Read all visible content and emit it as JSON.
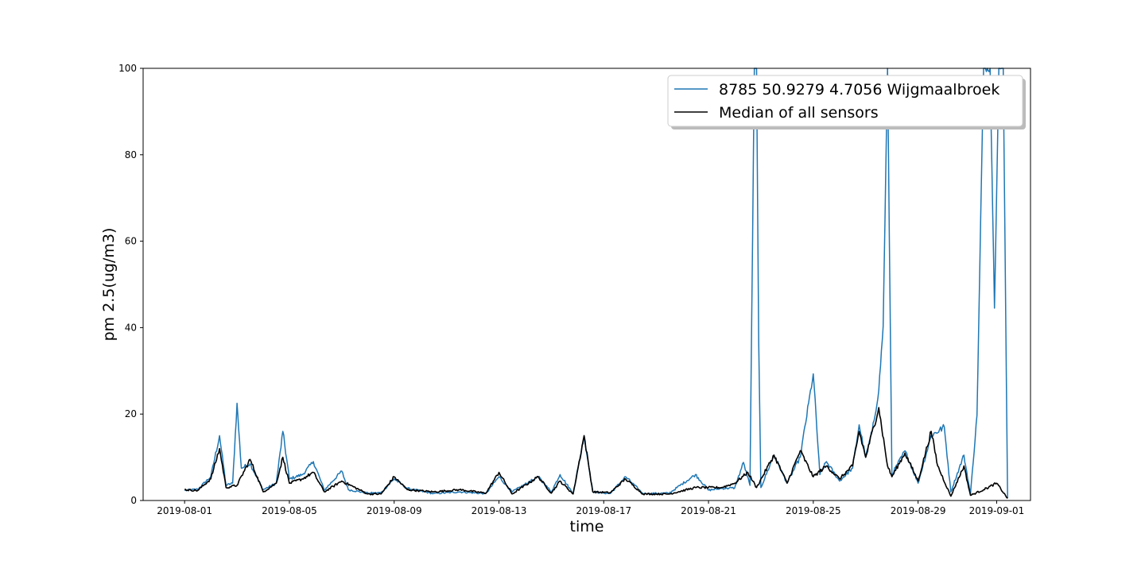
{
  "chart_data": {
    "type": "line",
    "xlabel": "time",
    "ylabel": "pm 2.5(ug/m3)",
    "ylim": [
      0,
      100
    ],
    "xlim": [
      "2019-07-30T10:00",
      "2019-09-02T07:00"
    ],
    "yticks": [
      "0",
      "20",
      "40",
      "60",
      "80",
      "100"
    ],
    "xticks": [
      "2019-08-01",
      "2019-08-05",
      "2019-08-09",
      "2019-08-13",
      "2019-08-17",
      "2019-08-21",
      "2019-08-25",
      "2019-08-29",
      "2019-09-01"
    ],
    "legend_position": "top-right",
    "grid": false,
    "series": [
      {
        "name": "8785 50.9279 4.7056 Wijgmaalbroek",
        "color": "#1f77b4",
        "points": [
          [
            "2019-08-01T00:00",
            2.3
          ],
          [
            "2019-08-01T12:00",
            2.6
          ],
          [
            "2019-08-02T00:00",
            5.5
          ],
          [
            "2019-08-02T08:00",
            15.0
          ],
          [
            "2019-08-02T14:00",
            3.5
          ],
          [
            "2019-08-02T20:00",
            4.0
          ],
          [
            "2019-08-03T00:00",
            22.5
          ],
          [
            "2019-08-03T04:00",
            7.5
          ],
          [
            "2019-08-03T12:00",
            8.5
          ],
          [
            "2019-08-04T00:00",
            2.5
          ],
          [
            "2019-08-04T12:00",
            4.0
          ],
          [
            "2019-08-04T18:00",
            16.0
          ],
          [
            "2019-08-05T00:00",
            5.0
          ],
          [
            "2019-08-05T12:00",
            6.0
          ],
          [
            "2019-08-05T22:00",
            9.0
          ],
          [
            "2019-08-06T08:00",
            2.4
          ],
          [
            "2019-08-07T00:00",
            6.8
          ],
          [
            "2019-08-07T06:00",
            2.5
          ],
          [
            "2019-08-08T00:00",
            1.7
          ],
          [
            "2019-08-08T12:00",
            1.8
          ],
          [
            "2019-08-09T00:00",
            5.0
          ],
          [
            "2019-08-09T12:00",
            2.8
          ],
          [
            "2019-08-10T12:00",
            1.6
          ],
          [
            "2019-08-11T12:00",
            2.0
          ],
          [
            "2019-08-12T12:00",
            1.6
          ],
          [
            "2019-08-13T00:00",
            5.5
          ],
          [
            "2019-08-13T12:00",
            2.0
          ],
          [
            "2019-08-14T12:00",
            5.5
          ],
          [
            "2019-08-15T00:00",
            2.0
          ],
          [
            "2019-08-15T08:00",
            6.0
          ],
          [
            "2019-08-15T20:00",
            1.6
          ],
          [
            "2019-08-16T06:00",
            15.0
          ],
          [
            "2019-08-16T14:00",
            2.0
          ],
          [
            "2019-08-17T06:00",
            1.6
          ],
          [
            "2019-08-17T20:00",
            5.5
          ],
          [
            "2019-08-18T12:00",
            1.6
          ],
          [
            "2019-08-19T12:00",
            1.7
          ],
          [
            "2019-08-20T12:00",
            6.0
          ],
          [
            "2019-08-21T00:00",
            2.4
          ],
          [
            "2019-08-21T12:00",
            2.8
          ],
          [
            "2019-08-22T00:00",
            2.9
          ],
          [
            "2019-08-22T08:00",
            8.8
          ],
          [
            "2019-08-22T14:00",
            3.5
          ],
          [
            "2019-08-22T18:00",
            100
          ],
          [
            "2019-08-22T20:00",
            100
          ],
          [
            "2019-08-22T22:00",
            36.5
          ],
          [
            "2019-08-23T00:00",
            3.0
          ],
          [
            "2019-08-23T12:00",
            10.5
          ],
          [
            "2019-08-24T00:00",
            4.0
          ],
          [
            "2019-08-24T12:00",
            10.0
          ],
          [
            "2019-08-25T00:00",
            29.3
          ],
          [
            "2019-08-25T06:00",
            6.0
          ],
          [
            "2019-08-25T12:00",
            9.0
          ],
          [
            "2019-08-26T00:00",
            4.5
          ],
          [
            "2019-08-26T12:00",
            7.5
          ],
          [
            "2019-08-26T18:00",
            17.5
          ],
          [
            "2019-08-27T00:00",
            10.0
          ],
          [
            "2019-08-27T06:00",
            16.0
          ],
          [
            "2019-08-27T12:00",
            25.5
          ],
          [
            "2019-08-27T16:00",
            40.3
          ],
          [
            "2019-08-27T20:00",
            100
          ],
          [
            "2019-08-28T00:00",
            6.0
          ],
          [
            "2019-08-28T12:00",
            11.5
          ],
          [
            "2019-08-29T00:00",
            4.0
          ],
          [
            "2019-08-29T12:00",
            15.0
          ],
          [
            "2019-08-30T00:00",
            17.0
          ],
          [
            "2019-08-30T06:00",
            2.0
          ],
          [
            "2019-08-30T18:00",
            10.5
          ],
          [
            "2019-08-31T00:00",
            1.5
          ],
          [
            "2019-08-31T06:00",
            19.7
          ],
          [
            "2019-08-31T12:00",
            100
          ],
          [
            "2019-08-31T18:00",
            100
          ],
          [
            "2019-08-31T22:00",
            44.5
          ],
          [
            "2019-09-01T02:00",
            100
          ],
          [
            "2019-09-01T06:00",
            100
          ],
          [
            "2019-09-01T10:00",
            0.5
          ]
        ]
      },
      {
        "name": "Median of all sensors",
        "color": "#000000",
        "points": [
          [
            "2019-08-01T00:00",
            2.5
          ],
          [
            "2019-08-01T12:00",
            2.3
          ],
          [
            "2019-08-02T00:00",
            5.0
          ],
          [
            "2019-08-02T08:00",
            12.0
          ],
          [
            "2019-08-02T14:00",
            3.0
          ],
          [
            "2019-08-03T00:00",
            3.5
          ],
          [
            "2019-08-03T12:00",
            9.5
          ],
          [
            "2019-08-04T00:00",
            2.0
          ],
          [
            "2019-08-04T12:00",
            4.0
          ],
          [
            "2019-08-04T18:00",
            10.0
          ],
          [
            "2019-08-05T00:00",
            4.0
          ],
          [
            "2019-08-05T12:00",
            5.0
          ],
          [
            "2019-08-05T22:00",
            6.5
          ],
          [
            "2019-08-06T08:00",
            2.0
          ],
          [
            "2019-08-07T00:00",
            4.5
          ],
          [
            "2019-08-08T00:00",
            1.5
          ],
          [
            "2019-08-08T12:00",
            1.5
          ],
          [
            "2019-08-09T00:00",
            5.5
          ],
          [
            "2019-08-09T12:00",
            2.5
          ],
          [
            "2019-08-10T12:00",
            2.0
          ],
          [
            "2019-08-11T12:00",
            2.5
          ],
          [
            "2019-08-12T12:00",
            1.7
          ],
          [
            "2019-08-13T00:00",
            6.5
          ],
          [
            "2019-08-13T12:00",
            1.5
          ],
          [
            "2019-08-14T12:00",
            5.5
          ],
          [
            "2019-08-15T00:00",
            1.7
          ],
          [
            "2019-08-15T08:00",
            4.5
          ],
          [
            "2019-08-15T20:00",
            1.5
          ],
          [
            "2019-08-16T06:00",
            15.0
          ],
          [
            "2019-08-16T14:00",
            2.0
          ],
          [
            "2019-08-17T06:00",
            1.8
          ],
          [
            "2019-08-17T20:00",
            5.0
          ],
          [
            "2019-08-18T12:00",
            1.5
          ],
          [
            "2019-08-19T12:00",
            1.5
          ],
          [
            "2019-08-20T12:00",
            3.0
          ],
          [
            "2019-08-21T12:00",
            3.0
          ],
          [
            "2019-08-22T00:00",
            4.0
          ],
          [
            "2019-08-22T12:00",
            6.5
          ],
          [
            "2019-08-22T20:00",
            3.0
          ],
          [
            "2019-08-23T12:00",
            10.5
          ],
          [
            "2019-08-24T00:00",
            4.0
          ],
          [
            "2019-08-24T12:00",
            11.5
          ],
          [
            "2019-08-25T00:00",
            5.5
          ],
          [
            "2019-08-25T12:00",
            8.0
          ],
          [
            "2019-08-26T00:00",
            5.0
          ],
          [
            "2019-08-26T12:00",
            8.0
          ],
          [
            "2019-08-26T18:00",
            16.0
          ],
          [
            "2019-08-27T00:00",
            10.0
          ],
          [
            "2019-08-27T12:00",
            21.5
          ],
          [
            "2019-08-27T20:00",
            8.0
          ],
          [
            "2019-08-28T00:00",
            5.5
          ],
          [
            "2019-08-28T12:00",
            11.0
          ],
          [
            "2019-08-29T00:00",
            4.5
          ],
          [
            "2019-08-29T12:00",
            16.0
          ],
          [
            "2019-08-29T18:00",
            8.0
          ],
          [
            "2019-08-30T06:00",
            1.0
          ],
          [
            "2019-08-30T18:00",
            8.0
          ],
          [
            "2019-08-31T00:00",
            1.2
          ],
          [
            "2019-08-31T12:00",
            2.5
          ],
          [
            "2019-09-01T00:00",
            4.0
          ],
          [
            "2019-09-01T10:00",
            0.5
          ]
        ]
      }
    ]
  }
}
